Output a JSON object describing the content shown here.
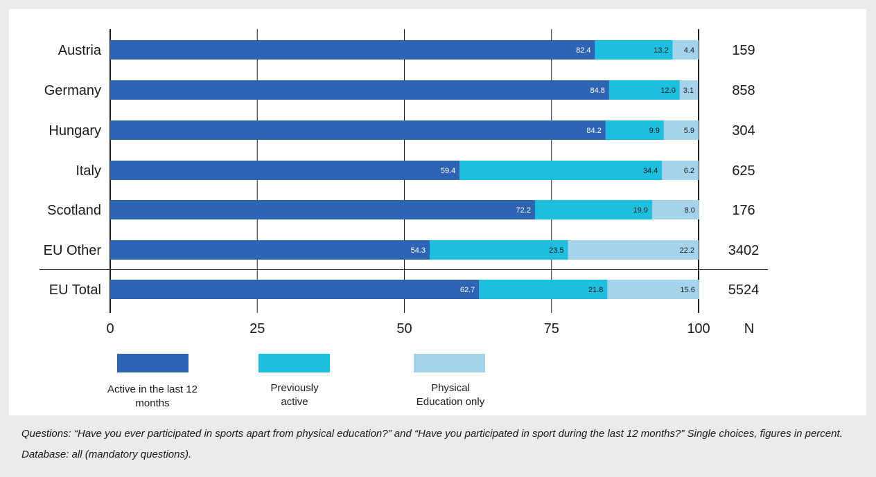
{
  "chart_data": {
    "type": "bar",
    "orientation": "horizontal",
    "stacked": true,
    "categories": [
      "Austria",
      "Germany",
      "Hungary",
      "Italy",
      "Scotland",
      "EU Other",
      "EU Total"
    ],
    "series": [
      {
        "name": "Active in the last 12 months",
        "color": "#2e64b4",
        "label_color": "#ffffff",
        "values": [
          82.4,
          84.8,
          84.2,
          59.4,
          72.2,
          54.3,
          62.7
        ]
      },
      {
        "name": "Previously active",
        "color": "#1ebedf",
        "label_color": "#1a1a1a",
        "values": [
          13.2,
          12.0,
          9.9,
          34.4,
          19.9,
          23.5,
          21.8
        ]
      },
      {
        "name": "Physical Education only",
        "color": "#a6d3ec",
        "label_color": "#1a1a1a",
        "values": [
          4.4,
          3.1,
          5.9,
          6.2,
          8.0,
          22.2,
          15.6
        ]
      }
    ],
    "n_header": "N",
    "n_values": [
      "159",
      "858",
      "304",
      "625",
      "176",
      "3402",
      "5524"
    ],
    "x_ticks": [
      "0",
      "25",
      "50",
      "75",
      "100"
    ],
    "xlim": [
      0,
      100
    ],
    "legend": {
      "position": "bottom",
      "items": [
        {
          "line1": "Active in the last 12",
          "line2": "months"
        },
        {
          "line1": "Previously",
          "line2": "active"
        },
        {
          "line1": "Physical",
          "line2": "Education only"
        }
      ]
    },
    "grid": true
  },
  "caption": "Questions: “Have you ever participated in sports apart from physical education?” and “Have you participated in sport during the last 12 months?” Single choices, figures in percent. Database: all (mandatory questions)."
}
